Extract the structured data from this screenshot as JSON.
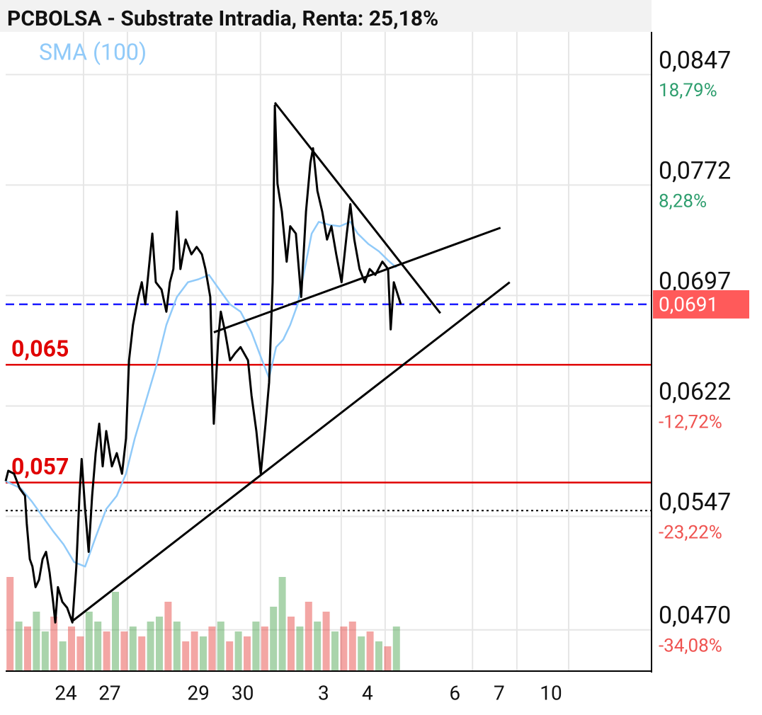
{
  "chart_data": {
    "type": "line",
    "title": "PCBOLSA - Substrate Intradia, Renta: 25,18%",
    "xlim": [
      0,
      14.71
    ],
    "ylim": [
      0.0442,
      0.0876
    ],
    "grid": true,
    "xticks": [
      {
        "value": 1.37,
        "label": "24"
      },
      {
        "value": 2.37,
        "label": "27"
      },
      {
        "value": 4.39,
        "label": "29"
      },
      {
        "value": 5.4,
        "label": "30"
      },
      {
        "value": 7.24,
        "label": "3"
      },
      {
        "value": 8.24,
        "label": "4"
      },
      {
        "value": 10.23,
        "label": "6"
      },
      {
        "value": 11.24,
        "label": "7"
      },
      {
        "value": 12.42,
        "label": "10"
      }
    ],
    "yticks": [
      {
        "value": 0.0847,
        "label": "0,0847"
      },
      {
        "value": 0.0772,
        "label": "0,0772"
      },
      {
        "value": 0.0697,
        "label": "0,0697"
      },
      {
        "value": 0.0622,
        "label": "0,0622"
      },
      {
        "value": 0.0547,
        "label": "0,0547"
      },
      {
        "value": 0.047,
        "label": "0,0470"
      }
    ],
    "ytick_returns": [
      {
        "value": 18.79,
        "label": "18,79%"
      },
      {
        "value": 8.28,
        "label": "8,28%"
      },
      null,
      {
        "value": -12.72,
        "label": "-12,72%"
      },
      {
        "value": -23.22,
        "label": "-23,22%"
      },
      {
        "value": -34.08,
        "label": "-34,08%"
      }
    ],
    "series": [
      {
        "color": "#000000",
        "x": [
          0,
          0.06,
          0.19,
          0.32,
          0.44,
          0.48,
          0.55,
          0.61,
          0.68,
          0.76,
          0.84,
          0.92,
          1.0,
          1.08,
          1.13,
          1.19,
          1.29,
          1.4,
          1.52,
          1.61,
          1.68,
          1.73,
          1.81,
          1.89,
          1.97,
          2.05,
          2.13,
          2.21,
          2.29,
          2.42,
          2.53,
          2.65,
          2.74,
          2.81,
          2.9,
          3.02,
          3.1,
          3.18,
          3.26,
          3.34,
          3.42,
          3.55,
          3.66,
          3.74,
          3.82,
          3.9,
          3.98,
          4.1,
          4.23,
          4.35,
          4.47,
          4.55,
          4.66,
          4.74,
          4.84,
          4.9,
          5.0,
          5.11,
          5.23,
          5.35,
          5.52,
          5.6,
          5.71,
          5.81,
          5.92,
          6.0,
          6.08,
          6.13,
          6.19,
          6.29,
          6.4,
          6.48,
          6.61,
          6.73,
          6.84,
          6.94,
          7.0,
          7.1,
          7.21,
          7.32,
          7.42,
          7.53,
          7.65,
          7.77,
          7.85,
          7.94,
          8.06,
          8.18,
          8.29,
          8.42,
          8.58,
          8.71,
          8.77,
          8.84,
          9.0
        ],
        "values": [
          0.0571,
          0.0578,
          0.0576,
          0.0566,
          0.0561,
          0.0542,
          0.0518,
          0.0513,
          0.0499,
          0.0504,
          0.0518,
          0.0523,
          0.0509,
          0.0489,
          0.0475,
          0.0499,
          0.0489,
          0.0485,
          0.0475,
          0.0513,
          0.0561,
          0.0586,
          0.0552,
          0.0523,
          0.0561,
          0.059,
          0.061,
          0.0581,
          0.0605,
          0.0581,
          0.059,
          0.0576,
          0.06,
          0.0653,
          0.0677,
          0.0696,
          0.0706,
          0.0691,
          0.0715,
          0.0739,
          0.0706,
          0.0701,
          0.0686,
          0.0706,
          0.0715,
          0.0754,
          0.0715,
          0.0735,
          0.0725,
          0.073,
          0.0725,
          0.0715,
          0.0696,
          0.061,
          0.0667,
          0.0686,
          0.0672,
          0.0653,
          0.0658,
          0.0662,
          0.0653,
          0.0629,
          0.0605,
          0.0576,
          0.061,
          0.0638,
          0.0706,
          0.0826,
          0.0773,
          0.0754,
          0.072,
          0.0744,
          0.0739,
          0.0696,
          0.0754,
          0.0787,
          0.0797,
          0.0768,
          0.0754,
          0.0735,
          0.0744,
          0.0725,
          0.0706,
          0.0739,
          0.0759,
          0.0735,
          0.0715,
          0.0706,
          0.0715,
          0.0711,
          0.072,
          0.0715,
          0.0674,
          0.0706,
          0.0691
        ]
      },
      {
        "name": "SMA (100)",
        "color": "#90caf9",
        "x": [
          0,
          0.35,
          0.6,
          0.84,
          1.08,
          1.32,
          1.56,
          1.81,
          2.05,
          2.29,
          2.53,
          2.74,
          2.94,
          3.18,
          3.42,
          3.66,
          3.9,
          4.15,
          4.39,
          4.63,
          4.87,
          5.11,
          5.35,
          5.6,
          5.84,
          6.0,
          6.16,
          6.32,
          6.48,
          6.65,
          6.81,
          6.97,
          7.13,
          7.37,
          7.61,
          7.85,
          8.02,
          8.26,
          8.5,
          8.74,
          8.9
        ],
        "values": [
          0.0571,
          0.0566,
          0.0557,
          0.0547,
          0.0537,
          0.0528,
          0.0516,
          0.0513,
          0.0533,
          0.0552,
          0.0561,
          0.0576,
          0.06,
          0.0624,
          0.0648,
          0.0677,
          0.0696,
          0.0706,
          0.0708,
          0.0711,
          0.0701,
          0.0691,
          0.0686,
          0.0672,
          0.0653,
          0.0641,
          0.0662,
          0.0667,
          0.0677,
          0.0691,
          0.0715,
          0.0739,
          0.0747,
          0.0745,
          0.0744,
          0.0747,
          0.0739,
          0.0732,
          0.0727,
          0.072,
          0.0716
        ]
      }
    ],
    "levels": [
      {
        "value": 0.065,
        "label": "0,065",
        "color": "#e00000"
      },
      {
        "value": 0.057,
        "label": "0,057",
        "color": "#e00000"
      }
    ],
    "current_price": {
      "value": 0.0691,
      "label": "0,0691",
      "color": "#ff5a5a",
      "line_color": "#1a1aff"
    },
    "reference_line": {
      "value": 0.0551
    },
    "trendlines": [
      {
        "x": [
          6.13,
          9.9
        ],
        "values": [
          0.0828,
          0.0685
        ]
      },
      {
        "x": [
          4.74,
          11.27
        ],
        "values": [
          0.0672,
          0.0743
        ]
      },
      {
        "x": [
          1.52,
          11.48
        ],
        "values": [
          0.0476,
          0.0706
        ]
      }
    ],
    "volume_lim": [
      0,
      100
    ],
    "volume": {
      "x": [
        0.1,
        0.3,
        0.5,
        0.7,
        0.9,
        1.1,
        1.3,
        1.5,
        1.7,
        1.9,
        2.1,
        2.3,
        2.5,
        2.7,
        2.9,
        3.1,
        3.3,
        3.5,
        3.7,
        3.9,
        4.1,
        4.3,
        4.5,
        4.7,
        4.9,
        5.1,
        5.3,
        5.5,
        5.7,
        5.9,
        6.1,
        6.3,
        6.5,
        6.7,
        6.9,
        7.1,
        7.3,
        7.5,
        7.7,
        7.9,
        8.1,
        8.3,
        8.5,
        8.7,
        8.9
      ],
      "values": [
        95,
        50,
        45,
        60,
        40,
        55,
        30,
        45,
        35,
        60,
        50,
        40,
        80,
        40,
        45,
        35,
        50,
        55,
        70,
        50,
        30,
        40,
        35,
        45,
        50,
        30,
        40,
        35,
        50,
        45,
        65,
        95,
        55,
        45,
        70,
        50,
        60,
        40,
        45,
        50,
        35,
        40,
        30,
        25,
        45
      ],
      "colors": [
        "#e53935",
        "#43a047",
        "#e53935",
        "#43a047",
        "#43a047",
        "#e53935",
        "#43a047",
        "#e53935",
        "#e53935",
        "#43a047",
        "#43a047",
        "#e53935",
        "#43a047",
        "#e53935",
        "#43a047",
        "#e53935",
        "#43a047",
        "#43a047",
        "#e53935",
        "#43a047",
        "#e53935",
        "#e53935",
        "#43a047",
        "#e53935",
        "#43a047",
        "#e53935",
        "#43a047",
        "#e53935",
        "#43a047",
        "#e53935",
        "#43a047",
        "#43a047",
        "#e53935",
        "#43a047",
        "#e53935",
        "#43a047",
        "#e53935",
        "#43a047",
        "#e53935",
        "#e53935",
        "#43a047",
        "#e53935",
        "#43a047",
        "#e53935",
        "#43a047"
      ]
    }
  }
}
